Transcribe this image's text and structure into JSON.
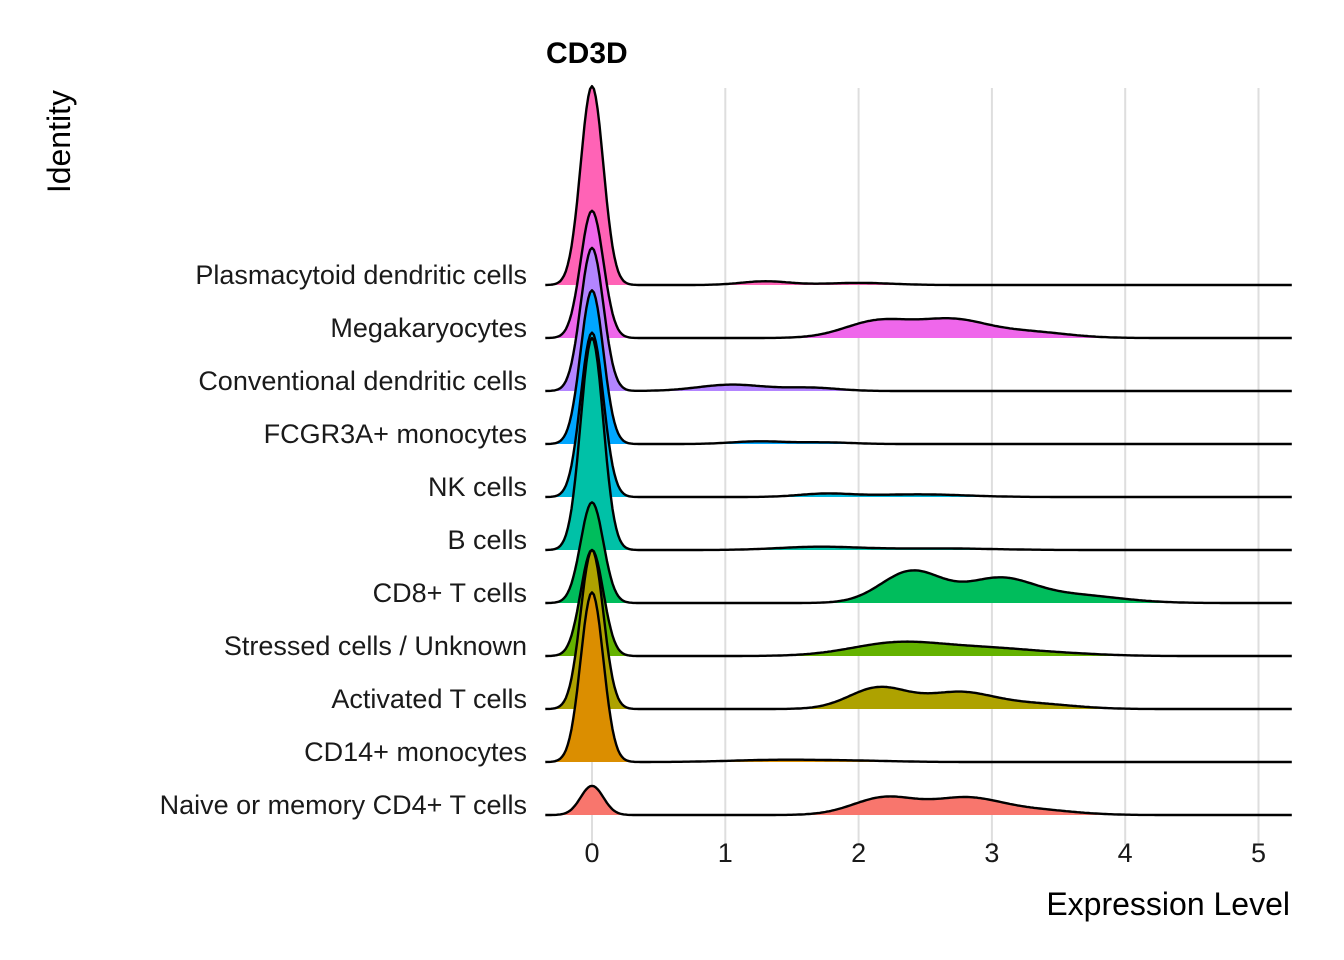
{
  "chart_data": {
    "type": "ridgeline",
    "title": "CD3D",
    "xlabel": "Expression Level",
    "ylabel": "Identity",
    "xlim": [
      -0.35,
      5.25
    ],
    "xticks": [
      0,
      1,
      2,
      3,
      4,
      5
    ],
    "grid": "vertical",
    "categories": [
      {
        "name": "Naive or memory CD4+ T cells",
        "color": "#F8766D",
        "zero_peak": 0.55,
        "mass": [
          [
            2.2,
            0.24,
            0.33
          ],
          [
            2.8,
            0.25,
            0.3
          ],
          [
            3.3,
            0.3,
            0.1
          ]
        ]
      },
      {
        "name": "CD14+ monocytes",
        "color": "#DB8E00",
        "zero_peak": 3.2,
        "mass": [
          [
            1.4,
            0.35,
            0.04
          ],
          [
            2.0,
            0.3,
            0.02
          ]
        ]
      },
      {
        "name": "Activated T cells",
        "color": "#AEA200",
        "zero_peak": 3.0,
        "mass": [
          [
            2.15,
            0.22,
            0.4
          ],
          [
            2.75,
            0.25,
            0.3
          ],
          [
            3.3,
            0.3,
            0.1
          ]
        ]
      },
      {
        "name": "Stressed cells / Unknown",
        "color": "#64B200",
        "zero_peak": 2.0,
        "mass": [
          [
            2.3,
            0.35,
            0.25
          ],
          [
            3.0,
            0.35,
            0.13
          ],
          [
            3.6,
            0.3,
            0.03
          ]
        ]
      },
      {
        "name": "CD8+ T cells",
        "color": "#00BD5C",
        "zero_peak": 1.9,
        "mass": [
          [
            2.4,
            0.23,
            0.6
          ],
          [
            3.05,
            0.25,
            0.43
          ],
          [
            3.6,
            0.35,
            0.15
          ]
        ]
      },
      {
        "name": "B cells",
        "color": "#00C1A7",
        "zero_peak": 4.0,
        "mass": [
          [
            1.7,
            0.3,
            0.06
          ],
          [
            2.6,
            0.4,
            0.03
          ]
        ]
      },
      {
        "name": "NK cells",
        "color": "#00BADE",
        "zero_peak": 3.1,
        "mass": [
          [
            1.75,
            0.2,
            0.06
          ],
          [
            2.45,
            0.35,
            0.05
          ]
        ]
      },
      {
        "name": "FCGR3A+ monocytes",
        "color": "#00A6FF",
        "zero_peak": 2.9,
        "mass": [
          [
            1.25,
            0.2,
            0.05
          ],
          [
            1.75,
            0.2,
            0.03
          ]
        ]
      },
      {
        "name": "Conventional dendritic cells",
        "color": "#B385FF",
        "zero_peak": 2.7,
        "mass": [
          [
            1.05,
            0.25,
            0.12
          ],
          [
            1.65,
            0.2,
            0.06
          ]
        ]
      },
      {
        "name": "Megakaryocytes",
        "color": "#EF67EB",
        "zero_peak": 2.4,
        "mass": [
          [
            2.15,
            0.25,
            0.32
          ],
          [
            2.7,
            0.25,
            0.32
          ],
          [
            3.25,
            0.3,
            0.12
          ]
        ]
      },
      {
        "name": "Plasmacytoid dendritic cells",
        "color": "#FF63B6",
        "zero_peak": 3.75,
        "mass": [
          [
            1.3,
            0.18,
            0.07
          ],
          [
            2.0,
            0.25,
            0.04
          ]
        ]
      }
    ]
  }
}
